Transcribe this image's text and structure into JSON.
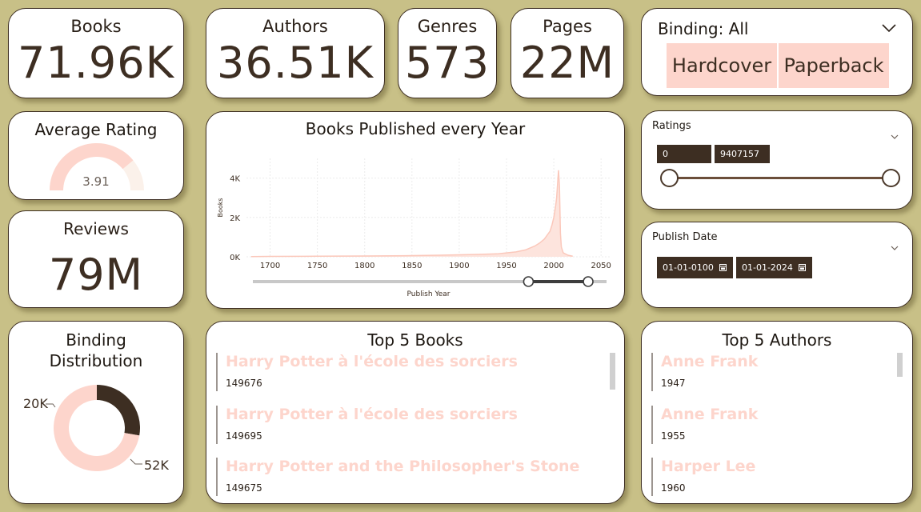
{
  "kpis": {
    "books": {
      "label": "Books",
      "value": "71.96K"
    },
    "authors": {
      "label": "Authors",
      "value": "36.51K"
    },
    "genres": {
      "label": "Genres",
      "value": "573"
    },
    "pages": {
      "label": "Pages",
      "value": "22M"
    },
    "reviews": {
      "label": "Reviews",
      "value": "79M"
    }
  },
  "binding_slicer": {
    "title": "Binding: All",
    "options": [
      "Hardcover",
      "Paperback"
    ]
  },
  "avg_rating": {
    "title": "Average Rating",
    "value": "3.91",
    "gauge_fraction": 0.78
  },
  "ratings_slicer": {
    "title": "Ratings",
    "min": "0",
    "max": "9407157"
  },
  "date_slicer": {
    "title": "Publish Date",
    "start": "01-01-0100",
    "end": "01-01-2024"
  },
  "binding_distribution": {
    "title": "Binding Distribution",
    "title_line1": "Binding",
    "title_line2": "Distribution"
  },
  "top_books": {
    "title": "Top 5 Books",
    "items": [
      {
        "name": "Harry Potter à l'école des sorciers",
        "sub": "149676"
      },
      {
        "name": "Harry Potter à l'école des sorciers",
        "sub": "149695"
      },
      {
        "name": "Harry Potter and the Philosopher's Stone",
        "sub": "149675"
      }
    ]
  },
  "top_authors": {
    "title": "Top 5 Authors",
    "items": [
      {
        "name": "Anne Frank",
        "sub": "1947"
      },
      {
        "name": "Anne Frank",
        "sub": "1955"
      },
      {
        "name": "Harper Lee",
        "sub": "1960"
      }
    ]
  },
  "colors": {
    "accent": "#fdd5cc",
    "dark": "#3d2e22",
    "background": "#c8c087"
  },
  "chart_data": [
    {
      "type": "area",
      "title": "Books Published every Year",
      "xlabel": "Publish Year",
      "ylabel": "Books",
      "x_ticks": [
        "1700",
        "1750",
        "1800",
        "1850",
        "1900",
        "1950",
        "2000",
        "2050"
      ],
      "y_ticks": [
        "0K",
        "2K",
        "4K"
      ],
      "xlim": [
        1675,
        2060
      ],
      "ylim": [
        0,
        5000
      ],
      "x": [
        1680,
        1700,
        1750,
        1800,
        1850,
        1880,
        1900,
        1920,
        1940,
        1950,
        1960,
        1970,
        1975,
        1980,
        1985,
        1990,
        1993,
        1996,
        1998,
        2000,
        2002,
        2003,
        2004,
        2005,
        2006,
        2007,
        2008,
        2010,
        2015,
        2020
      ],
      "y": [
        10,
        20,
        30,
        40,
        60,
        80,
        100,
        120,
        150,
        200,
        250,
        350,
        450,
        550,
        700,
        900,
        1100,
        1300,
        1600,
        2000,
        2600,
        3000,
        3700,
        4400,
        3600,
        1200,
        500,
        200,
        80,
        30
      ],
      "grid": true,
      "range_slider": {
        "start": 1975,
        "end": 2040
      }
    },
    {
      "type": "pie",
      "title": "Binding Distribution",
      "categories": [
        "Hardcover",
        "Paperback"
      ],
      "values": [
        20000,
        52000
      ],
      "labels": [
        "20K",
        "52K"
      ]
    }
  ]
}
